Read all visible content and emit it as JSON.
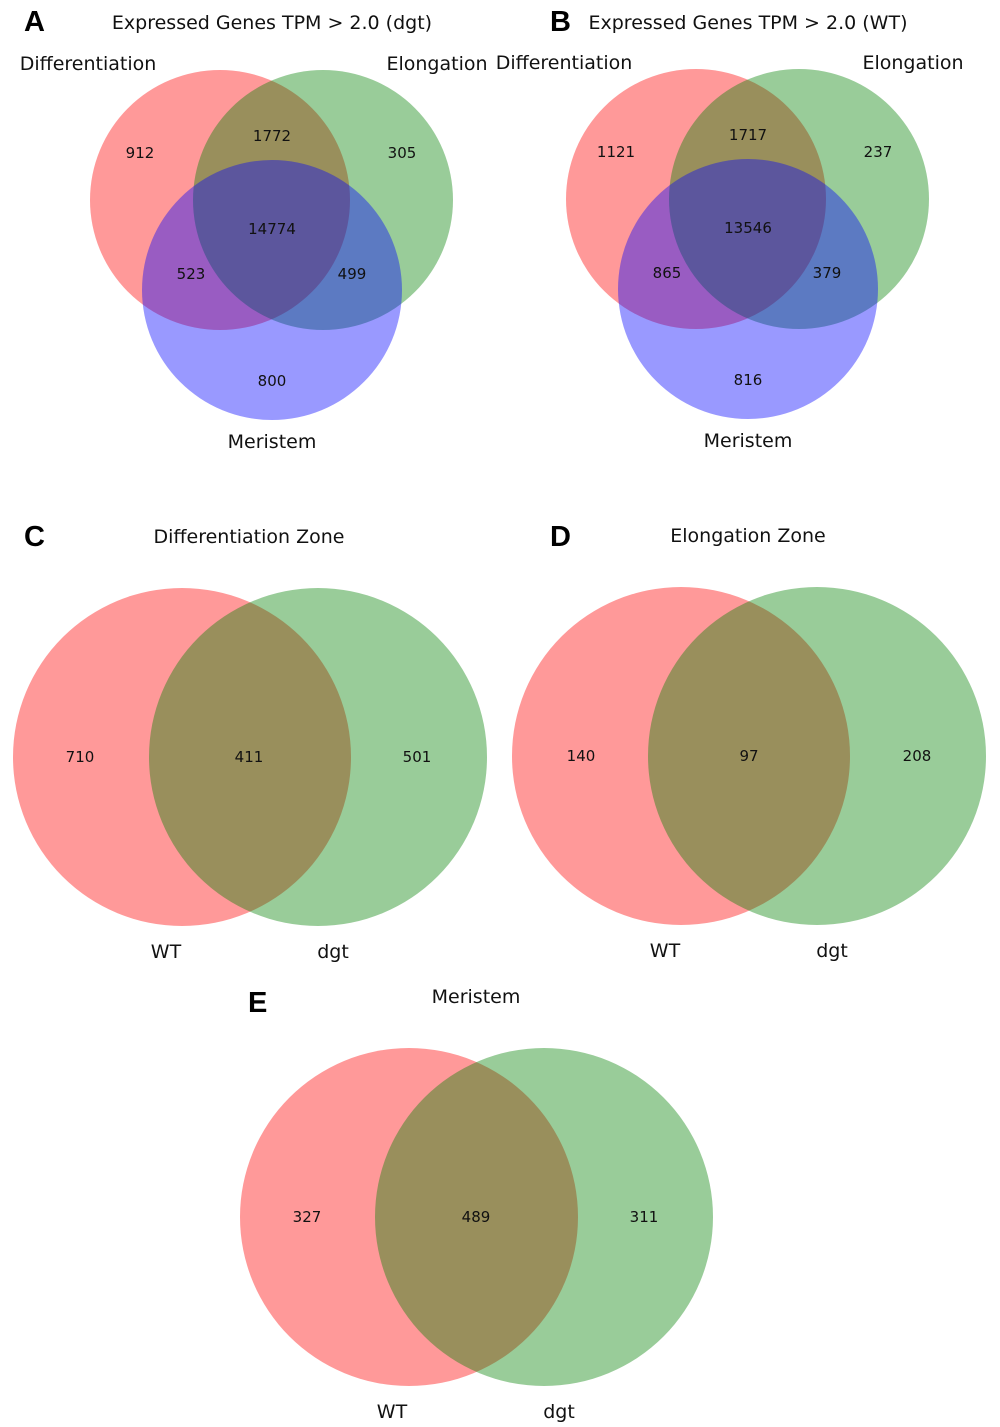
{
  "colors": {
    "red": "#ff0000",
    "green": "#008000",
    "blue": "#0000ff",
    "fill_opacity": 0.4
  },
  "panels": {
    "A": {
      "letter": "A",
      "title": "Expressed Genes TPM > 2.0 (dgt)",
      "labels": {
        "set1": "Differentiation",
        "set2": "Elongation",
        "set3": "Meristem"
      },
      "counts": {
        "only1": "912",
        "i12": "1772",
        "only2": "305",
        "i123": "14774",
        "i13": "523",
        "i23": "499",
        "only3": "800"
      }
    },
    "B": {
      "letter": "B",
      "title": "Expressed Genes TPM > 2.0 (WT)",
      "labels": {
        "set1": "Differentiation",
        "set2": "Elongation",
        "set3": "Meristem"
      },
      "counts": {
        "only1": "1121",
        "i12": "1717",
        "only2": "237",
        "i123": "13546",
        "i13": "865",
        "i23": "379",
        "only3": "816"
      }
    },
    "C": {
      "letter": "C",
      "title": "Differentiation Zone",
      "labels": {
        "set1": "WT",
        "set2": "dgt"
      },
      "counts": {
        "only1": "710",
        "i12": "411",
        "only2": "501"
      }
    },
    "D": {
      "letter": "D",
      "title": "Elongation Zone",
      "labels": {
        "set1": "WT",
        "set2": "dgt"
      },
      "counts": {
        "only1": "140",
        "i12": "97",
        "only2": "208"
      }
    },
    "E": {
      "letter": "E",
      "title": "Meristem",
      "labels": {
        "set1": "WT",
        "set2": "dgt"
      },
      "counts": {
        "only1": "327",
        "i12": "489",
        "only2": "311"
      }
    }
  }
}
